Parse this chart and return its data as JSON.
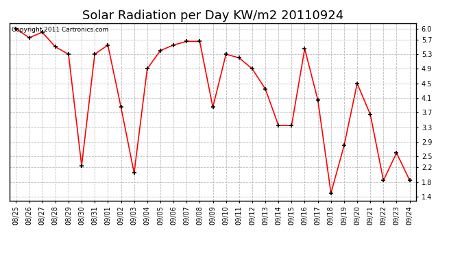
{
  "title": "Solar Radiation per Day KW/m2 20110924",
  "copyright_text": "Copyright 2011 Cartronics.com",
  "dates": [
    "08/25",
    "08/26",
    "08/27",
    "08/28",
    "08/29",
    "08/30",
    "08/31",
    "09/01",
    "09/02",
    "09/03",
    "09/04",
    "09/05",
    "09/06",
    "09/07",
    "09/08",
    "09/09",
    "09/10",
    "09/11",
    "09/12",
    "09/13",
    "09/14",
    "09/15",
    "09/16",
    "09/17",
    "09/18",
    "09/19",
    "09/20",
    "09/21",
    "09/22",
    "09/23",
    "09/24"
  ],
  "values": [
    6.0,
    5.75,
    5.9,
    5.5,
    5.3,
    2.25,
    5.3,
    5.55,
    3.85,
    2.05,
    4.9,
    5.4,
    5.55,
    5.65,
    5.65,
    3.85,
    5.3,
    5.2,
    4.9,
    4.35,
    3.35,
    3.35,
    5.45,
    4.05,
    1.5,
    2.8,
    4.5,
    3.65,
    1.85,
    2.6,
    1.85
  ],
  "line_color": "#ff0000",
  "marker_color": "#000000",
  "bg_color": "#ffffff",
  "plot_bg_color": "#ffffff",
  "grid_color": "#bbbbbb",
  "yticks": [
    1.4,
    1.8,
    2.2,
    2.5,
    2.9,
    3.3,
    3.7,
    4.1,
    4.5,
    4.9,
    5.3,
    5.7,
    6.0
  ],
  "ylim": [
    1.3,
    6.15
  ],
  "title_fontsize": 13,
  "tick_fontsize": 7,
  "copyright_fontsize": 6.5
}
